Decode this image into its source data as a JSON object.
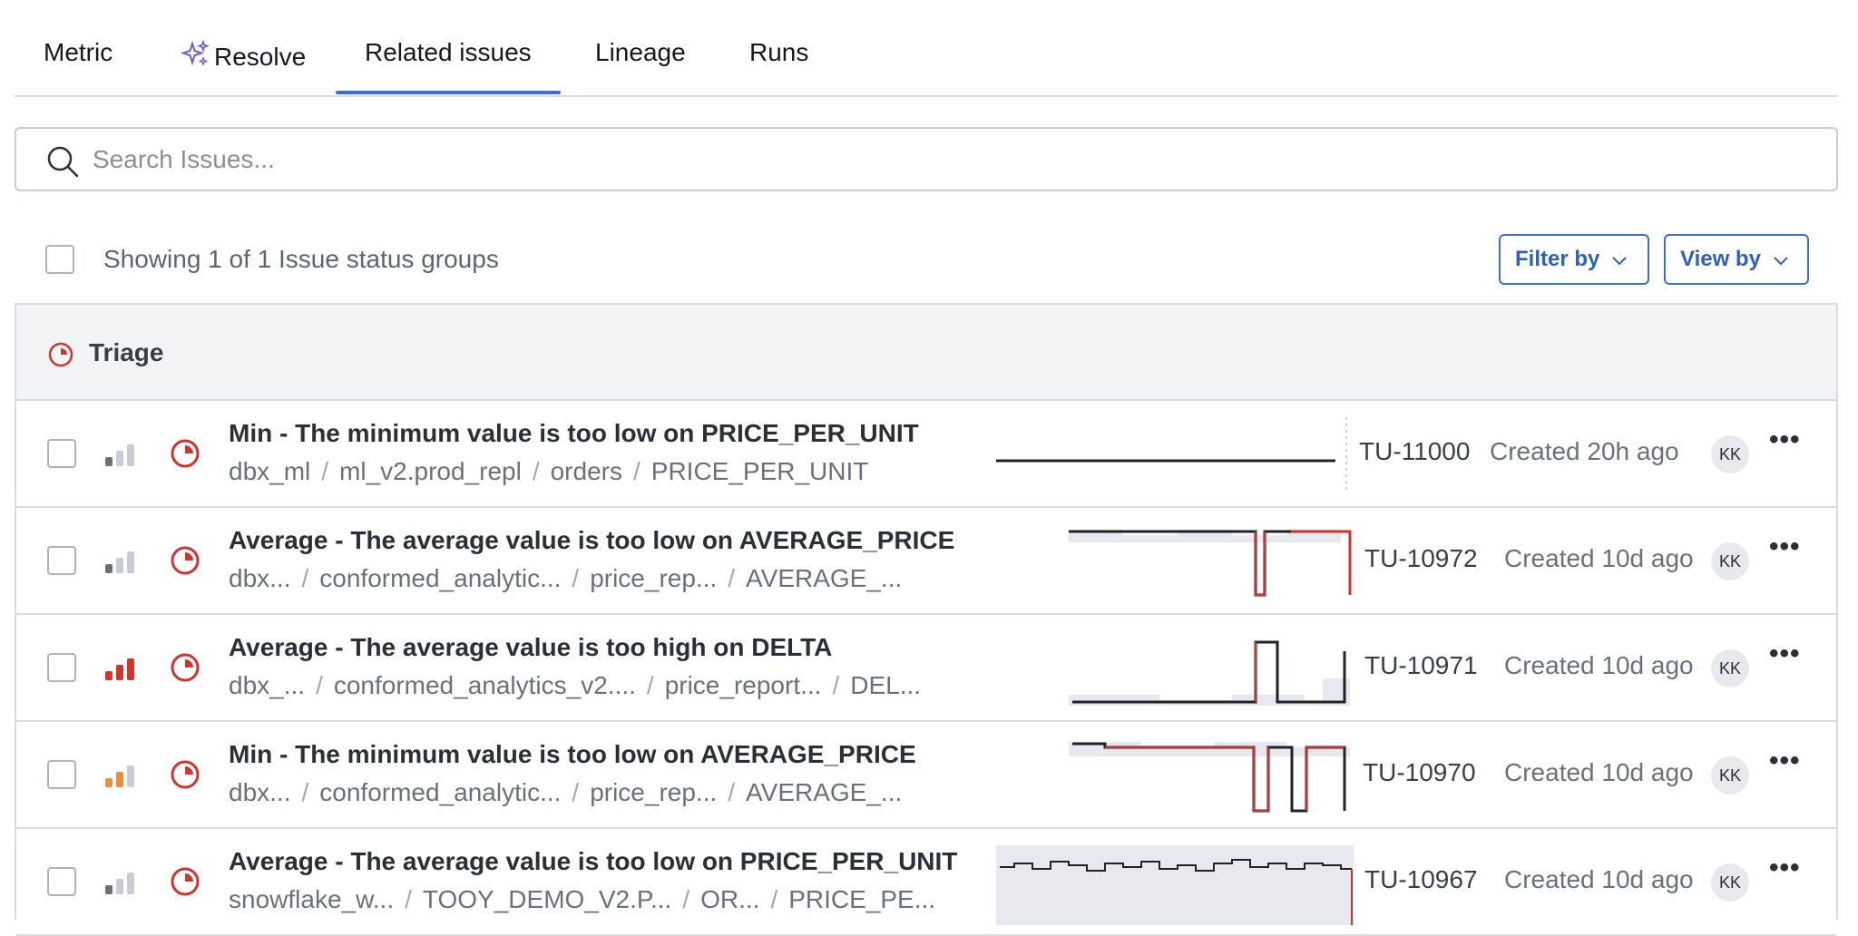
{
  "tabs": [
    {
      "label": "Metric"
    },
    {
      "label": "Resolve"
    },
    {
      "label": "Related issues"
    },
    {
      "label": "Lineage"
    },
    {
      "label": "Runs"
    }
  ],
  "active_tab": "Related issues",
  "search": {
    "placeholder": "Search Issues..."
  },
  "toolbar": {
    "showing_text": "Showing 1 of 1 Issue status groups",
    "filter_label": "Filter by",
    "view_label": "View by"
  },
  "group": {
    "label": "Triage"
  },
  "colors": {
    "accent": "#3b6fd4",
    "triage": "#d0342c",
    "priority_high": "#d0342c",
    "priority_medium": "#ef8c3a",
    "priority_low": "#a6a9ae"
  },
  "issues": [
    {
      "title": "Min - The minimum value is too low on PRICE_PER_UNIT",
      "path": [
        "dbx_ml",
        "ml_v2.prod_repl",
        "orders",
        "PRICE_PER_UNIT"
      ],
      "id": "TU-11000",
      "created": "Created 20h ago",
      "assignee": "KK",
      "priority": "low"
    },
    {
      "title": "Average - The average value is too low on AVERAGE_PRICE",
      "path": [
        "dbx...",
        "conformed_analytic...",
        "price_rep...",
        "AVERAGE_..."
      ],
      "id": "TU-10972",
      "created": "Created 10d ago",
      "assignee": "KK",
      "priority": "low"
    },
    {
      "title": "Average - The average value is too high on DELTA",
      "path": [
        "dbx_...",
        "conformed_analytics_v2....",
        "price_report...",
        "DEL..."
      ],
      "id": "TU-10971",
      "created": "Created 10d ago",
      "assignee": "KK",
      "priority": "high"
    },
    {
      "title": "Min - The minimum value is too low on AVERAGE_PRICE",
      "path": [
        "dbx...",
        "conformed_analytic...",
        "price_rep...",
        "AVERAGE_..."
      ],
      "id": "TU-10970",
      "created": "Created 10d ago",
      "assignee": "KK",
      "priority": "medium"
    },
    {
      "title": "Average - The average value is too low on PRICE_PER_UNIT",
      "path": [
        "snowflake_w...",
        "TOOY_DEMO_V2.P...",
        "OR...",
        "PRICE_PE..."
      ],
      "id": "TU-10967",
      "created": "Created 10d ago",
      "assignee": "KK",
      "priority": "low"
    }
  ]
}
